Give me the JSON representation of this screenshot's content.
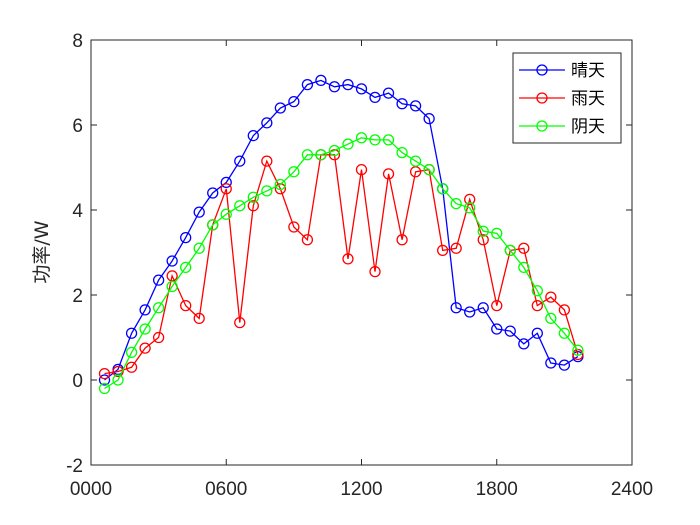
{
  "chart_data": {
    "type": "line",
    "ylabel": "功率/W",
    "xlabel": "",
    "xlim": [
      0,
      2400
    ],
    "ylim": [
      -2,
      8
    ],
    "x_ticks": [
      0,
      600,
      1200,
      1800,
      2400
    ],
    "x_tick_labels": [
      "0000",
      "0600",
      "1200",
      "1800",
      "2400"
    ],
    "y_ticks": [
      -2,
      0,
      2,
      4,
      6,
      8
    ],
    "y_tick_labels": [
      "-2",
      "0",
      "2",
      "4",
      "6",
      "8"
    ],
    "legend_position": "top-right",
    "grid": false,
    "x": [
      60,
      120,
      180,
      240,
      300,
      360,
      420,
      480,
      540,
      600,
      660,
      720,
      780,
      840,
      900,
      960,
      1020,
      1080,
      1140,
      1200,
      1260,
      1320,
      1380,
      1440,
      1500,
      1560,
      1620,
      1680,
      1740,
      1800,
      1860,
      1920,
      1980,
      2040,
      2100,
      2160
    ],
    "series": [
      {
        "name": "晴天",
        "color": "#0000ff",
        "values": [
          0.0,
          0.25,
          1.1,
          1.65,
          2.35,
          2.8,
          3.35,
          3.95,
          4.4,
          4.65,
          5.15,
          5.75,
          6.05,
          6.4,
          6.55,
          6.95,
          7.05,
          6.9,
          6.95,
          6.85,
          6.65,
          6.75,
          6.5,
          6.45,
          6.15,
          4.5,
          1.7,
          1.6,
          1.7,
          1.2,
          1.15,
          0.85,
          1.1,
          0.4,
          0.35,
          0.55
        ]
      },
      {
        "name": "雨天",
        "color": "#ff0000",
        "values": [
          0.15,
          0.2,
          0.3,
          0.75,
          1.0,
          2.45,
          1.75,
          1.45,
          3.65,
          4.5,
          1.35,
          4.1,
          5.15,
          4.5,
          3.6,
          3.3,
          5.3,
          5.3,
          2.85,
          4.95,
          2.55,
          4.85,
          3.3,
          4.9,
          4.95,
          3.05,
          3.1,
          4.25,
          3.3,
          1.75,
          3.05,
          3.1,
          1.75,
          1.95,
          1.65,
          0.6
        ]
      },
      {
        "name": "阴天",
        "color": "#00ff00",
        "values": [
          -0.2,
          0.0,
          0.65,
          1.2,
          1.7,
          2.2,
          2.65,
          3.1,
          3.65,
          3.9,
          4.1,
          4.3,
          4.45,
          4.6,
          4.9,
          5.3,
          5.3,
          5.4,
          5.55,
          5.7,
          5.65,
          5.65,
          5.35,
          5.15,
          4.95,
          4.5,
          4.15,
          4.05,
          3.5,
          3.45,
          3.05,
          2.65,
          2.1,
          1.45,
          1.1,
          0.7
        ]
      }
    ]
  }
}
